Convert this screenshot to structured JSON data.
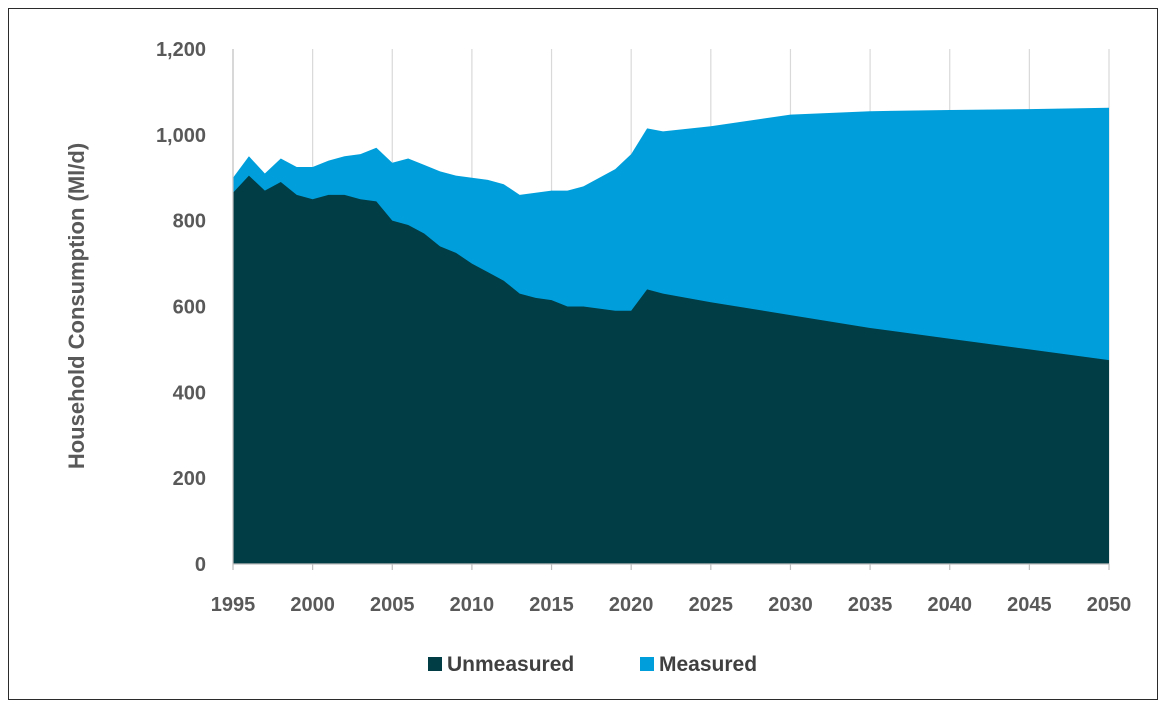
{
  "chart_data": {
    "type": "area",
    "stacked": true,
    "title": "",
    "xlabel": "",
    "ylabel": "Household Consumption (Ml/d)",
    "xlim": [
      1995,
      2050
    ],
    "ylim": [
      0,
      1200
    ],
    "x_ticks": [
      1995,
      2000,
      2005,
      2010,
      2015,
      2020,
      2025,
      2030,
      2035,
      2040,
      2045,
      2050
    ],
    "y_ticks": [
      0,
      200,
      400,
      600,
      800,
      1000,
      1200
    ],
    "x_tick_labels": [
      "1995",
      "2000",
      "2005",
      "2010",
      "2015",
      "2020",
      "2025",
      "2030",
      "2035",
      "2040",
      "2045",
      "2050"
    ],
    "y_tick_labels": [
      "0",
      "200",
      "400",
      "600",
      "800",
      "1,000",
      "1,200"
    ],
    "grid": "vertical",
    "legend_position": "bottom",
    "series": [
      {
        "name": "Unmeasured",
        "color": "#003D45",
        "x": [
          1995,
          1996,
          1997,
          1998,
          1999,
          2000,
          2001,
          2002,
          2003,
          2004,
          2005,
          2006,
          2007,
          2008,
          2009,
          2010,
          2011,
          2012,
          2013,
          2014,
          2015,
          2016,
          2017,
          2018,
          2019,
          2020,
          2021,
          2022,
          2025,
          2030,
          2035,
          2040,
          2045,
          2050
        ],
        "values": [
          865,
          905,
          870,
          890,
          860,
          850,
          860,
          860,
          850,
          845,
          800,
          790,
          770,
          740,
          725,
          700,
          680,
          660,
          630,
          620,
          615,
          600,
          600,
          595,
          590,
          590,
          640,
          630,
          610,
          580,
          550,
          525,
          500,
          475
        ]
      },
      {
        "name": "Measured",
        "color": "#009FDB",
        "x": [
          1995,
          1996,
          1997,
          1998,
          1999,
          2000,
          2001,
          2002,
          2003,
          2004,
          2005,
          2006,
          2007,
          2008,
          2009,
          2010,
          2011,
          2012,
          2013,
          2014,
          2015,
          2016,
          2017,
          2018,
          2019,
          2020,
          2021,
          2022,
          2025,
          2030,
          2035,
          2040,
          2045,
          2050
        ],
        "values": [
          35,
          45,
          40,
          55,
          65,
          75,
          80,
          90,
          105,
          125,
          135,
          155,
          160,
          175,
          180,
          200,
          215,
          225,
          230,
          245,
          255,
          270,
          280,
          305,
          330,
          365,
          375,
          378,
          410,
          467,
          505,
          533,
          560,
          588
        ],
        "totals": [
          900,
          950,
          910,
          945,
          925,
          925,
          940,
          950,
          955,
          970,
          935,
          945,
          930,
          915,
          905,
          900,
          895,
          885,
          860,
          865,
          870,
          870,
          880,
          900,
          920,
          955,
          1015,
          1008,
          1020,
          1047,
          1055,
          1058,
          1060,
          1063
        ]
      }
    ]
  }
}
